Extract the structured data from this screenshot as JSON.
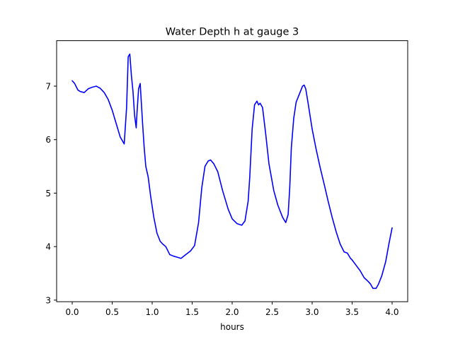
{
  "chart_data": {
    "type": "line",
    "title": "Water Depth h at gauge 3",
    "xlabel": "hours",
    "ylabel": "",
    "xlim": [
      -0.195,
      4.195
    ],
    "ylim": [
      2.97,
      7.85
    ],
    "xticks": [
      0.0,
      0.5,
      1.0,
      1.5,
      2.0,
      2.5,
      3.0,
      3.5,
      4.0
    ],
    "xtick_labels": [
      "0.0",
      "0.5",
      "1.0",
      "1.5",
      "2.0",
      "2.5",
      "3.0",
      "3.5",
      "4.0"
    ],
    "yticks": [
      3,
      4,
      5,
      6,
      7
    ],
    "ytick_labels": [
      "3",
      "4",
      "5",
      "6",
      "7"
    ],
    "grid": false,
    "legend": "none",
    "series": [
      {
        "color": "#0000ff",
        "x": [
          0.0,
          0.03,
          0.07,
          0.1,
          0.15,
          0.2,
          0.25,
          0.3,
          0.35,
          0.4,
          0.45,
          0.5,
          0.55,
          0.6,
          0.65,
          0.68,
          0.7,
          0.72,
          0.74,
          0.76,
          0.78,
          0.8,
          0.81,
          0.83,
          0.85,
          0.86,
          0.88,
          0.9,
          0.92,
          0.95,
          0.98,
          1.02,
          1.06,
          1.1,
          1.13,
          1.17,
          1.22,
          1.27,
          1.32,
          1.36,
          1.42,
          1.48,
          1.53,
          1.58,
          1.62,
          1.66,
          1.7,
          1.73,
          1.77,
          1.82,
          1.88,
          1.95,
          2.0,
          2.06,
          2.12,
          2.16,
          2.2,
          2.22,
          2.25,
          2.28,
          2.31,
          2.33,
          2.35,
          2.38,
          2.42,
          2.46,
          2.52,
          2.57,
          2.63,
          2.67,
          2.7,
          2.72,
          2.74,
          2.77,
          2.8,
          2.84,
          2.88,
          2.9,
          2.92,
          2.95,
          3.0,
          3.05,
          3.1,
          3.15,
          3.2,
          3.25,
          3.3,
          3.35,
          3.4,
          3.44,
          3.48,
          3.5,
          3.55,
          3.6,
          3.65,
          3.7,
          3.73,
          3.76,
          3.8,
          3.83,
          3.87,
          3.92,
          3.96,
          4.0
        ],
        "y": [
          7.1,
          7.05,
          6.93,
          6.9,
          6.88,
          6.95,
          6.98,
          7.0,
          6.96,
          6.88,
          6.75,
          6.55,
          6.3,
          6.05,
          5.92,
          6.6,
          7.55,
          7.6,
          7.2,
          6.9,
          6.45,
          6.22,
          6.5,
          6.95,
          7.05,
          6.8,
          6.3,
          5.85,
          5.5,
          5.3,
          4.95,
          4.55,
          4.25,
          4.1,
          4.05,
          4.0,
          3.85,
          3.82,
          3.8,
          3.78,
          3.85,
          3.92,
          4.02,
          4.45,
          5.1,
          5.5,
          5.6,
          5.62,
          5.55,
          5.4,
          5.05,
          4.7,
          4.52,
          4.43,
          4.4,
          4.48,
          4.85,
          5.3,
          6.2,
          6.65,
          6.72,
          6.65,
          6.68,
          6.6,
          6.1,
          5.55,
          5.05,
          4.78,
          4.55,
          4.45,
          4.6,
          5.1,
          5.85,
          6.4,
          6.7,
          6.85,
          7.0,
          7.02,
          6.95,
          6.68,
          6.2,
          5.82,
          5.48,
          5.17,
          4.85,
          4.55,
          4.28,
          4.05,
          3.9,
          3.88,
          3.78,
          3.75,
          3.65,
          3.55,
          3.42,
          3.35,
          3.3,
          3.22,
          3.22,
          3.3,
          3.45,
          3.72,
          4.05,
          4.35
        ]
      }
    ]
  }
}
